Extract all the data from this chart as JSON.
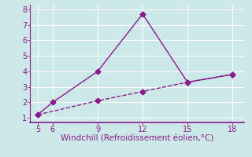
{
  "line1_x": [
    5,
    6,
    9,
    12,
    15,
    18
  ],
  "line1_y": [
    1.2,
    2.0,
    4.0,
    7.7,
    3.3,
    3.8
  ],
  "line2_x": [
    5,
    9,
    12,
    15,
    18
  ],
  "line2_y": [
    1.2,
    2.1,
    2.7,
    3.3,
    3.8
  ],
  "line_color": "#8b1a8b",
  "background_color": "#cce8e8",
  "xlabel": "Windchill (Refroidissement éolien,°C)",
  "xlim": [
    4.5,
    18.8
  ],
  "ylim": [
    0.7,
    8.3
  ],
  "xticks": [
    5,
    6,
    9,
    12,
    15,
    18
  ],
  "yticks": [
    1,
    2,
    3,
    4,
    5,
    6,
    7,
    8
  ],
  "xlabel_fontsize": 7.5,
  "tick_fontsize": 7,
  "marker": "D",
  "markersize": 3.5,
  "linewidth": 1.0,
  "grid_color": "#aacccc"
}
